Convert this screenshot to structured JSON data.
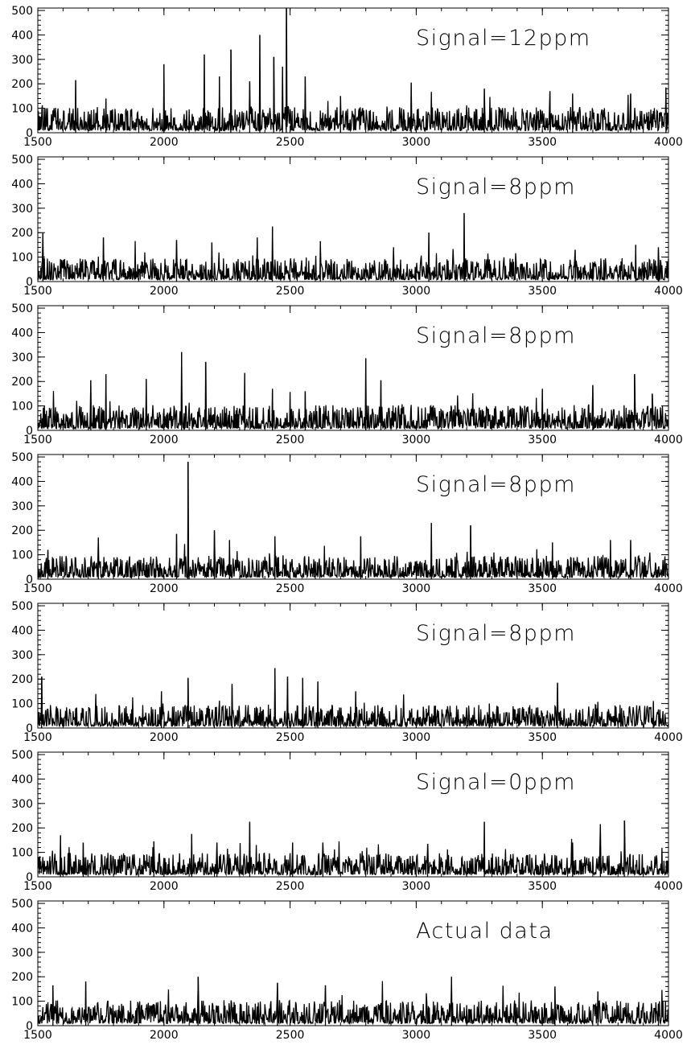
{
  "figure": {
    "axis_color": "#000000",
    "line_color": "#000000",
    "background": "#ffffff"
  },
  "chart_data": [
    {
      "type": "line",
      "annotation": "Signal=12ppm",
      "xlim": [
        1500,
        4000
      ],
      "ylim": [
        0,
        510
      ],
      "xticks": [
        1500,
        2000,
        2500,
        3000,
        3500,
        4000
      ],
      "yticks": [
        0,
        100,
        200,
        300,
        400,
        500
      ],
      "series": [
        {
          "baseline_level": 30,
          "noise_amplitude": 60,
          "peaks": [
            [
              1650,
              215
            ],
            [
              1770,
              140
            ],
            [
              2000,
              280
            ],
            [
              2160,
              320
            ],
            [
              2220,
              230
            ],
            [
              2265,
              340
            ],
            [
              2340,
              210
            ],
            [
              2380,
              400
            ],
            [
              2435,
              310
            ],
            [
              2470,
              270
            ],
            [
              2485,
              510
            ],
            [
              2560,
              230
            ],
            [
              2700,
              150
            ],
            [
              2980,
              205
            ],
            [
              3270,
              180
            ],
            [
              3530,
              170
            ],
            [
              3620,
              160
            ],
            [
              3850,
              160
            ],
            [
              3990,
              185
            ]
          ]
        }
      ]
    },
    {
      "type": "line",
      "annotation": "Signal=8ppm",
      "xlim": [
        1500,
        4000
      ],
      "ylim": [
        0,
        510
      ],
      "xticks": [
        1500,
        2000,
        2500,
        3000,
        3500,
        4000
      ],
      "yticks": [
        0,
        100,
        200,
        300,
        400,
        500
      ],
      "series": [
        {
          "baseline_level": 25,
          "noise_amplitude": 55,
          "peaks": [
            [
              1520,
              200
            ],
            [
              1760,
              180
            ],
            [
              2050,
              170
            ],
            [
              2190,
              160
            ],
            [
              2370,
              180
            ],
            [
              2430,
              225
            ],
            [
              2620,
              165
            ],
            [
              2910,
              140
            ],
            [
              3050,
              200
            ],
            [
              3190,
              280
            ],
            [
              3630,
              130
            ],
            [
              3870,
              150
            ],
            [
              3960,
              140
            ]
          ]
        }
      ]
    },
    {
      "type": "line",
      "annotation": "Signal=8ppm",
      "xlim": [
        1500,
        4000
      ],
      "ylim": [
        0,
        510
      ],
      "xticks": [
        1500,
        2000,
        2500,
        3000,
        3500,
        4000
      ],
      "yticks": [
        0,
        100,
        200,
        300,
        400,
        500
      ],
      "series": [
        {
          "baseline_level": 25,
          "noise_amplitude": 60,
          "peaks": [
            [
              1710,
              205
            ],
            [
              1770,
              230
            ],
            [
              1930,
              210
            ],
            [
              2070,
              320
            ],
            [
              2165,
              280
            ],
            [
              2320,
              235
            ],
            [
              2430,
              170
            ],
            [
              2560,
              160
            ],
            [
              2800,
              295
            ],
            [
              2860,
              205
            ],
            [
              3500,
              170
            ],
            [
              3700,
              185
            ],
            [
              3865,
              230
            ],
            [
              3935,
              150
            ]
          ]
        }
      ]
    },
    {
      "type": "line",
      "annotation": "Signal=8ppm",
      "xlim": [
        1500,
        4000
      ],
      "ylim": [
        0,
        510
      ],
      "xticks": [
        1500,
        2000,
        2500,
        3000,
        3500,
        4000
      ],
      "yticks": [
        0,
        100,
        200,
        300,
        400,
        500
      ],
      "series": [
        {
          "baseline_level": 25,
          "noise_amplitude": 55,
          "peaks": [
            [
              1540,
              120
            ],
            [
              1740,
              170
            ],
            [
              2050,
              185
            ],
            [
              2095,
              480
            ],
            [
              2200,
              200
            ],
            [
              2260,
              160
            ],
            [
              2440,
              175
            ],
            [
              2780,
              175
            ],
            [
              3060,
              230
            ],
            [
              3215,
              220
            ],
            [
              3540,
              150
            ],
            [
              3770,
              160
            ],
            [
              3850,
              160
            ]
          ]
        }
      ]
    },
    {
      "type": "line",
      "annotation": "Signal=8ppm",
      "xlim": [
        1500,
        4000
      ],
      "ylim": [
        0,
        510
      ],
      "xticks": [
        1500,
        2000,
        2500,
        3000,
        3500,
        4000
      ],
      "yticks": [
        0,
        100,
        200,
        300,
        400,
        500
      ],
      "series": [
        {
          "baseline_level": 25,
          "noise_amplitude": 55,
          "peaks": [
            [
              1515,
              210
            ],
            [
              1990,
              150
            ],
            [
              2095,
              205
            ],
            [
              2270,
              180
            ],
            [
              2440,
              245
            ],
            [
              2490,
              210
            ],
            [
              2550,
              205
            ],
            [
              2610,
              190
            ],
            [
              2760,
              150
            ],
            [
              3290,
              100
            ],
            [
              3560,
              185
            ],
            [
              3940,
              110
            ]
          ]
        }
      ]
    },
    {
      "type": "line",
      "annotation": "Signal=0ppm",
      "xlim": [
        1500,
        4000
      ],
      "ylim": [
        0,
        510
      ],
      "xticks": [
        1500,
        2000,
        2500,
        3000,
        3500,
        4000
      ],
      "yticks": [
        0,
        100,
        200,
        300,
        400,
        500
      ],
      "series": [
        {
          "baseline_level": 30,
          "noise_amplitude": 55,
          "peaks": [
            [
              1590,
              170
            ],
            [
              1680,
              140
            ],
            [
              1960,
              145
            ],
            [
              2110,
              175
            ],
            [
              2210,
              140
            ],
            [
              2340,
              225
            ],
            [
              2510,
              140
            ],
            [
              2630,
              140
            ],
            [
              3045,
              135
            ],
            [
              3270,
              225
            ],
            [
              3620,
              140
            ],
            [
              3730,
              215
            ],
            [
              3825,
              230
            ]
          ]
        }
      ]
    },
    {
      "type": "line",
      "annotation": "Actual data",
      "xlim": [
        1500,
        4000
      ],
      "ylim": [
        0,
        510
      ],
      "xticks": [
        1500,
        2000,
        2500,
        3000,
        3500,
        4000
      ],
      "yticks": [
        0,
        100,
        200,
        300,
        400,
        500
      ],
      "series": [
        {
          "baseline_level": 30,
          "noise_amplitude": 60,
          "peaks": [
            [
              1560,
              165
            ],
            [
              1690,
              180
            ],
            [
              2135,
              200
            ],
            [
              2450,
              175
            ],
            [
              2640,
              165
            ],
            [
              3140,
              200
            ],
            [
              3550,
              160
            ],
            [
              3720,
              140
            ],
            [
              3960,
              90
            ]
          ]
        }
      ]
    }
  ]
}
